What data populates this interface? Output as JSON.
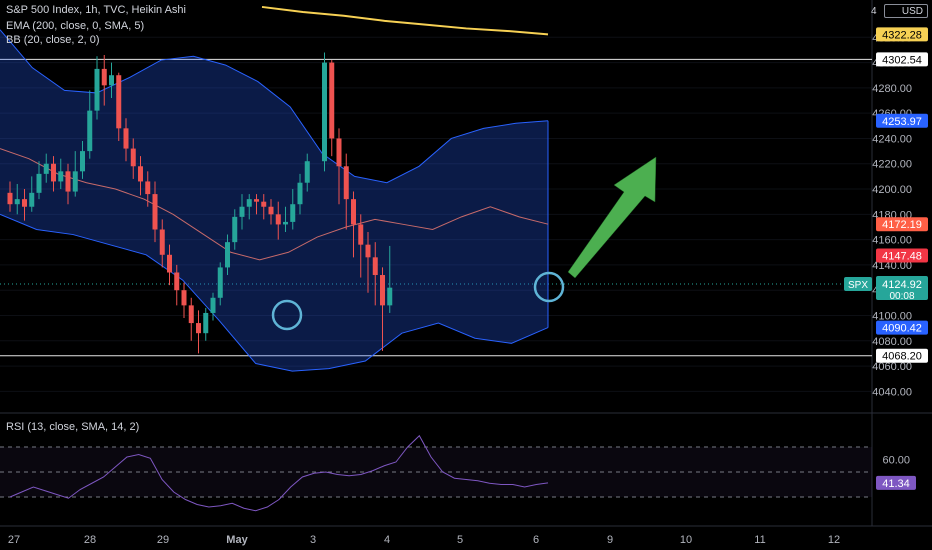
{
  "legend": {
    "title": "S&P 500 Index, 1h, TVC, Heikin Ashi",
    "ema": "EMA (200, close, 0, SMA, 5)",
    "bb": "BB (20, close, 2, 0)",
    "rsi": "RSI (13, close, SMA, 14, 2)"
  },
  "currency": "USD",
  "currency_prefix": "4",
  "colors": {
    "up": "#26a69a",
    "down": "#ef5350",
    "ema": "#f7d154",
    "bb_band": "#2962ff",
    "bb_basis": "#c76a6a",
    "rsi_line": "#7e57c2",
    "arrow": "#4caf50",
    "circle": "#5fb4d6"
  },
  "price_axis": {
    "min": 4030,
    "max": 4340,
    "ticks": [
      4040,
      4060,
      4080,
      4100,
      4120,
      4140,
      4160,
      4180,
      4200,
      4220,
      4240,
      4260,
      4280,
      4300,
      4320
    ],
    "tick_labels": [
      "4040.00",
      "4060.00",
      "4080.00",
      "4100.00",
      "4120.00",
      "4140.00",
      "4160.00",
      "4180.00",
      "4200.00",
      "4220.00",
      "4240.00",
      "4260.00",
      "4280.00",
      "4300.00",
      "4320.00"
    ]
  },
  "price_badges": [
    {
      "label": "4322.28",
      "value": 4322.28,
      "bg": "#f7d154",
      "fg": "#000000"
    },
    {
      "label": "4302.54",
      "value": 4302.54,
      "bg": "#ffffff",
      "fg": "#000000"
    },
    {
      "label": "4253.97",
      "value": 4253.97,
      "bg": "#2962ff",
      "fg": "#ffffff"
    },
    {
      "label": "4172.19",
      "value": 4172.19,
      "bg": "#ff5f46",
      "fg": "#ffffff"
    },
    {
      "label": "4147.48",
      "value": 4147.48,
      "bg": "#f23645",
      "fg": "#ffffff"
    },
    {
      "label": "4090.42",
      "value": 4090.42,
      "bg": "#2962ff",
      "fg": "#ffffff"
    },
    {
      "label": "4068.20",
      "value": 4068.2,
      "bg": "#ffffff",
      "fg": "#000000"
    }
  ],
  "last_price": {
    "symbol": "SPX",
    "value": 4124.92,
    "label": "4124.92",
    "countdown": "00:08",
    "bg": "#26a69a"
  },
  "levels": {
    "resistance": 4302.54,
    "support": 4068.2
  },
  "rsi_axis": {
    "min": 10,
    "max": 90,
    "ticks": [
      60
    ],
    "tick_labels": [
      "60.00"
    ],
    "dashed_levels": [
      70,
      50,
      30
    ]
  },
  "rsi_badge": {
    "label": "41.34",
    "value": 41.34,
    "bg": "#7e57c2"
  },
  "time_axis": {
    "labels": [
      "27",
      "28",
      "29",
      "May",
      "3",
      "4",
      "5",
      "6",
      "9",
      "10",
      "11",
      "12"
    ],
    "positions": [
      0,
      12,
      22,
      32,
      42,
      52,
      62,
      72,
      82,
      92,
      102,
      112
    ]
  },
  "chart_data": {
    "type": "candlestick",
    "title": "S&P 500 Index, 1h, TVC, Heikin Ashi",
    "y_range": [
      4030,
      4340
    ],
    "candles": [
      [
        4197,
        4188,
        4206,
        4182
      ],
      [
        4188,
        4192,
        4204,
        4180
      ],
      [
        4192,
        4186,
        4200,
        4175
      ],
      [
        4186,
        4197,
        4210,
        4182
      ],
      [
        4197,
        4212,
        4222,
        4192
      ],
      [
        4212,
        4220,
        4228,
        4205
      ],
      [
        4220,
        4206,
        4226,
        4198
      ],
      [
        4206,
        4214,
        4224,
        4200
      ],
      [
        4214,
        4198,
        4220,
        4188
      ],
      [
        4198,
        4214,
        4230,
        4194
      ],
      [
        4214,
        4230,
        4238,
        4208
      ],
      [
        4230,
        4262,
        4278,
        4224
      ],
      [
        4262,
        4295,
        4305,
        4255
      ],
      [
        4295,
        4282,
        4306,
        4266
      ],
      [
        4282,
        4290,
        4300,
        4272
      ],
      [
        4290,
        4248,
        4292,
        4238
      ],
      [
        4248,
        4232,
        4256,
        4222
      ],
      [
        4232,
        4218,
        4240,
        4208
      ],
      [
        4218,
        4206,
        4226,
        4195
      ],
      [
        4206,
        4196,
        4214,
        4186
      ],
      [
        4196,
        4168,
        4206,
        4158
      ],
      [
        4168,
        4148,
        4176,
        4138
      ],
      [
        4148,
        4134,
        4156,
        4124
      ],
      [
        4134,
        4120,
        4140,
        4108
      ],
      [
        4120,
        4108,
        4126,
        4098
      ],
      [
        4108,
        4094,
        4114,
        4080
      ],
      [
        4094,
        4086,
        4104,
        4070
      ],
      [
        4086,
        4102,
        4106,
        4080
      ],
      [
        4102,
        4114,
        4118,
        4096
      ],
      [
        4114,
        4138,
        4142,
        4108
      ],
      [
        4138,
        4158,
        4164,
        4132
      ],
      [
        4158,
        4178,
        4184,
        4152
      ],
      [
        4178,
        4186,
        4196,
        4168
      ],
      [
        4186,
        4192,
        4196,
        4176
      ],
      [
        4192,
        4190,
        4196,
        4180
      ],
      [
        4190,
        4186,
        4196,
        4176
      ],
      [
        4186,
        4180,
        4192,
        4172
      ],
      [
        4180,
        4172,
        4190,
        4160
      ],
      [
        4172,
        4174,
        4186,
        4166
      ],
      [
        4174,
        4188,
        4200,
        4168
      ],
      [
        4188,
        4205,
        4212,
        4180
      ],
      [
        4205,
        4222,
        4228,
        4198
      ],
      [
        4222,
        4300,
        4308,
        4214
      ],
      [
        4300,
        4240,
        4302,
        4226
      ],
      [
        4240,
        4218,
        4248,
        4188
      ],
      [
        4218,
        4192,
        4228,
        4168
      ],
      [
        4192,
        4172,
        4198,
        4146
      ],
      [
        4172,
        4156,
        4180,
        4130
      ],
      [
        4156,
        4146,
        4166,
        4118
      ],
      [
        4146,
        4132,
        4158,
        4108
      ],
      [
        4132,
        4108,
        4138,
        4072
      ],
      [
        4108,
        4122,
        4155,
        4102
      ]
    ],
    "ema": [
      4344,
      4340,
      4337,
      4333,
      4330,
      4327,
      4325,
      4322.28
    ],
    "bb_upper": [
      4326,
      4296,
      4278,
      4276,
      4288,
      4302,
      4305,
      4298,
      4285,
      4265,
      4228,
      4210,
      4205,
      4218,
      4240,
      4248,
      4252,
      4253.97
    ],
    "bb_lower": [
      4180,
      4168,
      4164,
      4156,
      4148,
      4128,
      4096,
      4062,
      4056,
      4058,
      4064,
      4086,
      4094,
      4082,
      4078,
      4090.42
    ],
    "bb_basis": [
      4232,
      4224,
      4212,
      4205,
      4200,
      4192,
      4180,
      4165,
      4150,
      4144,
      4150,
      4162,
      4170,
      4176,
      4172,
      4168,
      4178,
      4186,
      4178,
      4172.19
    ],
    "rsi": [
      30,
      34,
      38,
      35,
      32,
      29,
      36,
      41,
      46,
      54,
      62,
      64,
      61,
      44,
      34,
      28,
      24,
      22,
      23,
      25,
      21,
      19,
      22,
      28,
      38,
      46,
      49,
      50,
      48,
      47,
      48,
      51,
      55,
      58,
      70,
      79,
      62,
      50,
      45,
      44,
      43,
      41,
      40,
      40,
      38,
      40,
      41.34
    ]
  }
}
